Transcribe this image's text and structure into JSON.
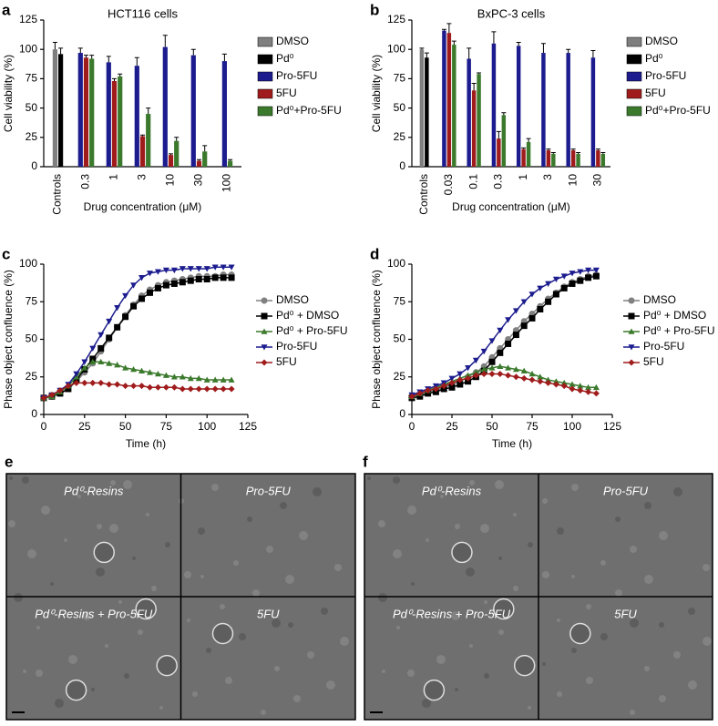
{
  "chart_data": [
    {
      "panel": "a",
      "type": "bar",
      "title": "HCT116 cells",
      "xlabel": "Drug concentration (μM)",
      "ylabel": "Cell viability (%)",
      "categories": [
        "Controls",
        "0.3",
        "1",
        "3",
        "10",
        "30",
        "100"
      ],
      "ylim": [
        0,
        125
      ],
      "yticks": [
        0,
        25,
        50,
        75,
        100,
        125
      ],
      "series": [
        {
          "name": "DMSO",
          "color": "#7f7f7f",
          "values": [
            100,
            null,
            null,
            null,
            null,
            null,
            null
          ],
          "errors": [
            6,
            null,
            null,
            null,
            null,
            null,
            null
          ]
        },
        {
          "name": "Pd⁰",
          "color": "#000000",
          "values": [
            96,
            null,
            null,
            null,
            null,
            null,
            null
          ],
          "errors": [
            5,
            null,
            null,
            null,
            null,
            null,
            null
          ]
        },
        {
          "name": "Pro-5FU",
          "color": "#1c1c8f",
          "values": [
            null,
            97,
            89,
            86,
            102,
            95,
            90
          ],
          "errors": [
            null,
            4,
            5,
            7,
            10,
            5,
            6
          ]
        },
        {
          "name": "5FU",
          "color": "#a01c1c",
          "values": [
            null,
            93,
            73,
            26,
            10,
            5,
            null
          ],
          "errors": [
            null,
            2,
            2,
            1,
            1,
            1,
            null
          ]
        },
        {
          "name": "Pd⁰+Pro-5FU",
          "color": "#3b7a2c",
          "values": [
            null,
            92,
            77,
            45,
            22,
            13,
            5
          ],
          "errors": [
            null,
            3,
            2,
            5,
            3,
            5,
            1
          ]
        }
      ]
    },
    {
      "panel": "b",
      "type": "bar",
      "title": "BxPC-3 cells",
      "xlabel": "Drug concentration (μM)",
      "ylabel": "Cell viability (%)",
      "categories": [
        "Controls",
        "0.03",
        "0.1",
        "0.3",
        "1",
        "3",
        "10",
        "30"
      ],
      "ylim": [
        0,
        125
      ],
      "yticks": [
        0,
        25,
        50,
        75,
        100,
        125
      ],
      "series": [
        {
          "name": "DMSO",
          "color": "#7f7f7f",
          "values": [
            100,
            null,
            null,
            null,
            null,
            null,
            null,
            null
          ],
          "errors": [
            1,
            null,
            null,
            null,
            null,
            null,
            null,
            null
          ]
        },
        {
          "name": "Pd⁰",
          "color": "#000000",
          "values": [
            93,
            null,
            null,
            null,
            null,
            null,
            null,
            null
          ],
          "errors": [
            4,
            null,
            null,
            null,
            null,
            null,
            null,
            null
          ]
        },
        {
          "name": "Pro-5FU",
          "color": "#1c1c8f",
          "values": [
            null,
            116,
            92,
            105,
            103,
            97,
            97,
            93
          ],
          "errors": [
            null,
            1,
            9,
            10,
            3,
            8,
            3,
            6
          ]
        },
        {
          "name": "5FU",
          "color": "#a01c1c",
          "values": [
            null,
            114,
            65,
            24,
            15,
            14,
            14,
            14
          ],
          "errors": [
            null,
            8,
            6,
            6,
            1,
            1,
            1,
            1
          ]
        },
        {
          "name": "Pd⁰+Pro-5FU",
          "color": "#3b7a2c",
          "values": [
            null,
            104,
            79,
            44,
            21,
            11,
            11,
            11
          ],
          "errors": [
            null,
            3,
            1,
            2,
            3,
            1,
            1,
            1
          ]
        }
      ]
    },
    {
      "panel": "c",
      "type": "line",
      "xlabel": "Time (h)",
      "ylabel": "Phase object confluence (%)",
      "xlim": [
        0,
        125
      ],
      "xticks": [
        0,
        25,
        50,
        75,
        100,
        125
      ],
      "ylim": [
        0,
        100
      ],
      "yticks": [
        0,
        25,
        50,
        75,
        100
      ],
      "x": [
        0,
        5,
        10,
        15,
        20,
        25,
        30,
        35,
        40,
        45,
        50,
        55,
        60,
        65,
        70,
        75,
        80,
        85,
        90,
        95,
        100,
        105,
        110,
        115
      ],
      "series": [
        {
          "name": "DMSO",
          "color": "#808080",
          "marker": "circle",
          "values": [
            11,
            12,
            14,
            17,
            22,
            28,
            34,
            42,
            50,
            58,
            66,
            73,
            79,
            83,
            86,
            88,
            89,
            90,
            91,
            92,
            92,
            92,
            93,
            93
          ]
        },
        {
          "name": "Pd⁰ + DMSO",
          "color": "#000000",
          "marker": "square",
          "values": [
            11,
            12,
            14,
            17,
            23,
            30,
            37,
            44,
            51,
            58,
            65,
            72,
            77,
            81,
            84,
            86,
            87,
            88,
            89,
            90,
            90,
            91,
            91,
            91
          ]
        },
        {
          "name": "Pd⁰ + Pro-5FU",
          "color": "#3b7a2c",
          "marker": "triangle-up",
          "values": [
            11,
            12,
            15,
            19,
            25,
            31,
            35,
            35,
            34,
            33,
            31,
            30,
            29,
            28,
            27,
            26,
            25,
            25,
            24,
            24,
            23,
            23,
            23,
            23
          ]
        },
        {
          "name": "Pro-5FU",
          "color": "#1c1c8f",
          "marker": "triangle-down",
          "values": [
            11,
            13,
            16,
            20,
            27,
            35,
            44,
            53,
            62,
            71,
            79,
            86,
            91,
            94,
            95,
            96,
            96,
            97,
            97,
            97,
            97,
            98,
            98,
            98
          ]
        },
        {
          "name": "5FU",
          "color": "#a01c1c",
          "marker": "diamond",
          "values": [
            11,
            13,
            16,
            19,
            21,
            21,
            21,
            21,
            20,
            20,
            19,
            19,
            19,
            18,
            18,
            18,
            18,
            17,
            17,
            17,
            17,
            17,
            17,
            17
          ]
        }
      ]
    },
    {
      "panel": "d",
      "type": "line",
      "xlabel": "Time (h)",
      "ylabel": "Phase object confluence (%)",
      "xlim": [
        0,
        125
      ],
      "xticks": [
        0,
        25,
        50,
        75,
        100,
        125
      ],
      "ylim": [
        0,
        100
      ],
      "yticks": [
        0,
        25,
        50,
        75,
        100
      ],
      "x": [
        0,
        5,
        10,
        15,
        20,
        25,
        30,
        35,
        40,
        45,
        50,
        55,
        60,
        65,
        70,
        75,
        80,
        85,
        90,
        95,
        100,
        105,
        110,
        115
      ],
      "series": [
        {
          "name": "DMSO",
          "color": "#808080",
          "marker": "circle",
          "values": [
            12,
            13,
            15,
            16,
            18,
            20,
            22,
            25,
            28,
            32,
            38,
            44,
            50,
            56,
            62,
            67,
            72,
            77,
            81,
            85,
            88,
            90,
            92,
            93
          ]
        },
        {
          "name": "Pd⁰ + DMSO",
          "color": "#000000",
          "marker": "square",
          "values": [
            11,
            12,
            14,
            15,
            17,
            18,
            20,
            22,
            25,
            29,
            35,
            41,
            47,
            53,
            59,
            64,
            70,
            75,
            80,
            84,
            87,
            89,
            91,
            92
          ]
        },
        {
          "name": "Pd⁰ + Pro-5FU",
          "color": "#3b7a2c",
          "marker": "triangle-up",
          "values": [
            12,
            14,
            16,
            18,
            20,
            22,
            24,
            26,
            28,
            30,
            31,
            32,
            31,
            30,
            29,
            27,
            25,
            23,
            22,
            21,
            20,
            19,
            18,
            18
          ]
        },
        {
          "name": "Pro-5FU",
          "color": "#1c1c8f",
          "marker": "triangle-down",
          "values": [
            13,
            15,
            17,
            19,
            21,
            24,
            27,
            31,
            36,
            42,
            49,
            56,
            63,
            69,
            75,
            80,
            84,
            87,
            90,
            92,
            94,
            95,
            96,
            96
          ]
        },
        {
          "name": "5FU",
          "color": "#a01c1c",
          "marker": "diamond",
          "values": [
            12,
            14,
            16,
            17,
            19,
            21,
            23,
            24,
            26,
            27,
            27,
            27,
            26,
            25,
            24,
            23,
            22,
            21,
            20,
            19,
            17,
            16,
            15,
            14
          ]
        }
      ]
    }
  ],
  "images": [
    {
      "panel": "e",
      "labels": [
        "Pd⁰-Resins",
        "Pro-5FU",
        "Pd⁰-Resins + Pro-5FU",
        "5FU"
      ]
    },
    {
      "panel": "f",
      "labels": [
        "Pd⁰-Resins",
        "Pro-5FU",
        "Pd⁰-Resins + Pro-5FU",
        "5FU"
      ]
    }
  ]
}
